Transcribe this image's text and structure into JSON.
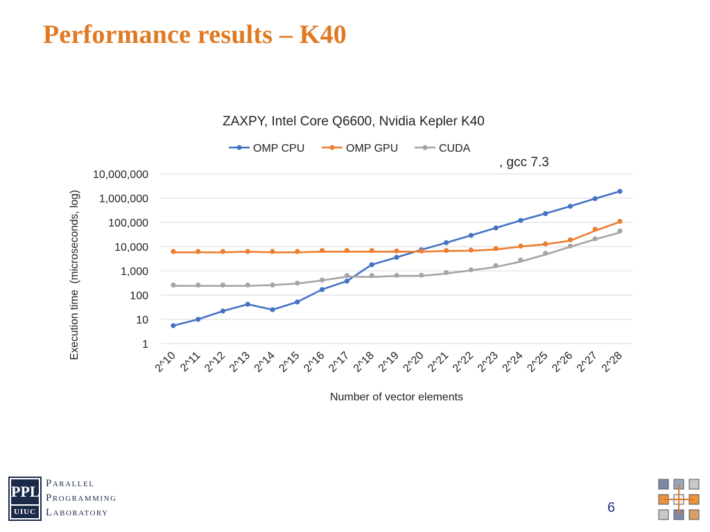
{
  "slide": {
    "title": "Performance results – K40",
    "page_number": "6",
    "logo_top": "PPL",
    "logo_bottom": "UIUC",
    "logo_lines": [
      "Parallel",
      "Programming",
      "Laboratory"
    ]
  },
  "chart_data": {
    "type": "line",
    "title": "ZAXPY, Intel Core Q6600, Nvidia Kepler K40",
    "annotation": ", gcc 7.3",
    "xlabel": "Number of vector elements",
    "ylabel": "Execution time  (microseconds, log)",
    "y_scale": "log",
    "ylim": [
      1,
      10000000
    ],
    "y_ticks": [
      1,
      10,
      100,
      1000,
      10000,
      100000,
      1000000,
      10000000
    ],
    "y_tick_labels": [
      "1",
      "10",
      "100",
      "1,000",
      "10,000",
      "100,000",
      "1,000,000",
      "10,000,000"
    ],
    "grid": true,
    "legend_position": "top-center",
    "categories": [
      "2^10",
      "2^11",
      "2^12",
      "2^13",
      "2^14",
      "2^15",
      "2^16",
      "2^17",
      "2^18",
      "2^19",
      "2^20",
      "2^21",
      "2^22",
      "2^23",
      "2^24",
      "2^25",
      "2^26",
      "2^27",
      "2^28"
    ],
    "series": [
      {
        "name": "OMP CPU",
        "color": "#4472c4",
        "values": [
          5.5,
          10,
          22,
          42,
          25,
          52,
          170,
          380,
          1800,
          3600,
          7400,
          14500,
          29000,
          59000,
          120000,
          230000,
          460000,
          950000,
          1900000
        ],
        "markers": [
          5.5,
          10,
          22,
          42,
          25,
          52,
          170,
          380,
          1800,
          3600,
          7400,
          14500,
          29000,
          59000,
          120000,
          230000,
          460000,
          950000,
          1900000
        ]
      },
      {
        "name": "OMP GPU",
        "color": "#ed7d31",
        "values": [
          5800,
          5800,
          5800,
          6200,
          5800,
          5800,
          6200,
          6200,
          6200,
          6200,
          6200,
          6600,
          6800,
          7600,
          10000,
          12500,
          17500,
          45000,
          105000
        ],
        "markers": [
          6300,
          6300,
          6300,
          6300,
          6300,
          6300,
          6900,
          6900,
          6900,
          6600,
          6600,
          6900,
          7200,
          8300,
          10500,
          13000,
          19000,
          52000,
          110000
        ]
      },
      {
        "name": "CUDA",
        "color": "#a5a5a5",
        "values": [
          240,
          240,
          240,
          240,
          260,
          300,
          400,
          580,
          560,
          620,
          620,
          780,
          1050,
          1450,
          2400,
          4700,
          9800,
          20000,
          38000
        ],
        "markers": [
          260,
          260,
          260,
          260,
          260,
          310,
          420,
          640,
          640,
          650,
          660,
          850,
          1100,
          1650,
          2800,
          5300,
          10500,
          21000,
          44000
        ]
      }
    ]
  }
}
